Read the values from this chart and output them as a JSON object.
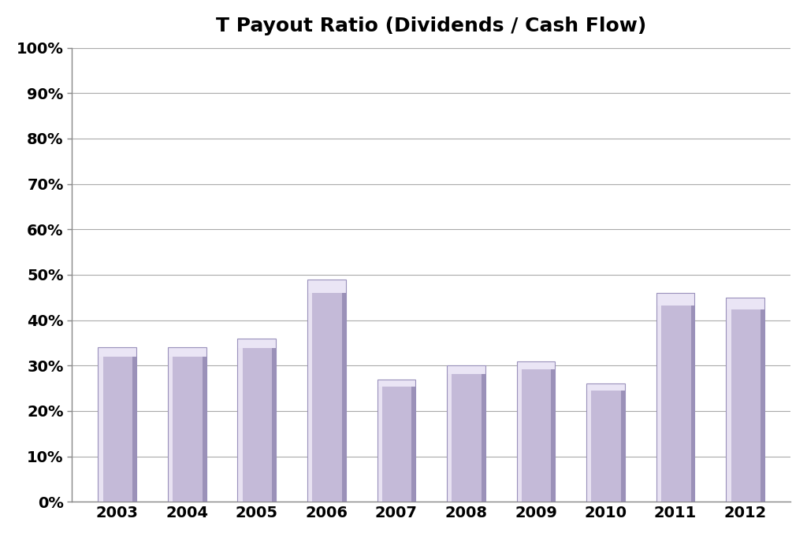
{
  "title": "T Payout Ratio (Dividends / Cash Flow)",
  "categories": [
    "2003",
    "2004",
    "2005",
    "2006",
    "2007",
    "2008",
    "2009",
    "2010",
    "2011",
    "2012"
  ],
  "values": [
    0.34,
    0.34,
    0.36,
    0.49,
    0.27,
    0.3,
    0.31,
    0.26,
    0.46,
    0.45
  ],
  "bar_color_main": "#C4BAD8",
  "bar_color_light": "#E8E2F2",
  "bar_color_dark": "#9B91B8",
  "bar_color_top": "#EAE5F5",
  "ylim": [
    0,
    1.0
  ],
  "ytick_vals": [
    0.0,
    0.1,
    0.2,
    0.3,
    0.4,
    0.5,
    0.6,
    0.7,
    0.8,
    0.9,
    1.0
  ],
  "ytick_labels": [
    "0%",
    "10%",
    "20%",
    "30%",
    "40%",
    "50%",
    "60%",
    "70%",
    "80%",
    "90%",
    "100%"
  ],
  "background_color": "#FFFFFF",
  "title_fontsize": 18,
  "tick_fontsize": 14,
  "grid_color": "#AAAAAA",
  "bar_width": 0.55
}
